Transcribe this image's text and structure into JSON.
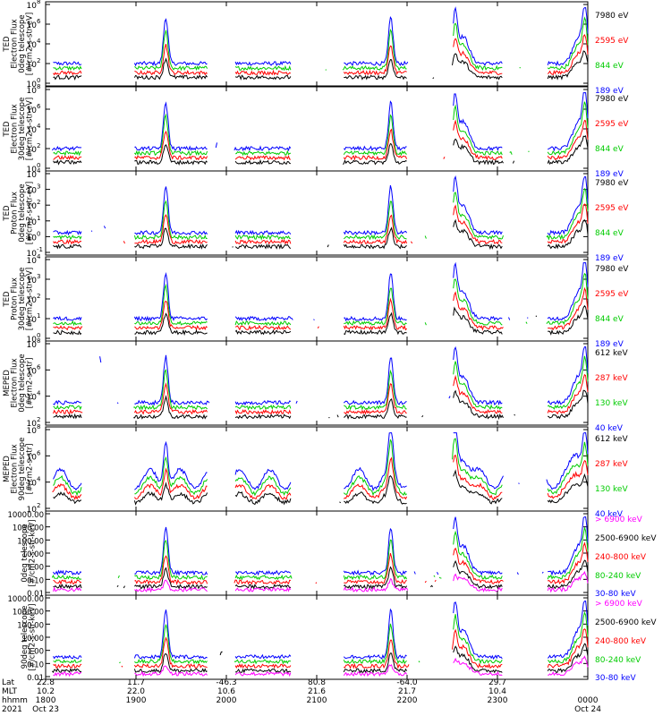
{
  "chart_data": {
    "type": "line",
    "x_start": "1800 UT, Oct 23 2021",
    "x_end": "0000 UT, Oct 24",
    "footer": {
      "row_labels": [
        "Lat",
        "MLT",
        "hhmm",
        "2021"
      ],
      "ticks": [
        {
          "lat": "22.8",
          "mlt": "10.2",
          "hhmm": "1800",
          "date": "Oct 23"
        },
        {
          "lat": "11.7",
          "mlt": "22.0",
          "hhmm": "1900",
          "date": ""
        },
        {
          "lat": "-46.3",
          "mlt": "10.6",
          "hhmm": "2000",
          "date": ""
        },
        {
          "lat": "80.8",
          "mlt": "21.6",
          "hhmm": "2100",
          "date": ""
        },
        {
          "lat": "-64.0",
          "mlt": "21.7",
          "hhmm": "2200",
          "date": ""
        },
        {
          "lat": "29.7",
          "mlt": "10.4",
          "hhmm": "2300",
          "date": ""
        },
        {
          "lat": "",
          "mlt": "",
          "hhmm": "0000",
          "date": "Oct 24"
        }
      ]
    },
    "panels": [
      {
        "ylabel": [
          "TED",
          "Electron Flux",
          "0deg telescope",
          "[#/cm2-s-str-eV]"
        ],
        "log_scale": true,
        "yticks": [
          {
            "base": "10",
            "exp": "0"
          },
          {
            "base": "10",
            "exp": "2"
          },
          {
            "base": "10",
            "exp": "4"
          },
          {
            "base": "10",
            "exp": "6"
          },
          {
            "base": "10",
            "exp": "8"
          }
        ],
        "legend": [
          {
            "text": "7980 eV",
            "color": "#000000"
          },
          {
            "text": "2595 eV",
            "color": "#ff0000"
          },
          {
            "text": "844 eV",
            "color": "#00cc00"
          },
          {
            "text": "189 eV",
            "color": "#0000ff"
          }
        ]
      },
      {
        "ylabel": [
          "TED",
          "Electron Flux",
          "30deg telescope",
          "[#/cm2-s-str-eV]"
        ],
        "log_scale": true,
        "yticks": [
          {
            "base": "10",
            "exp": "0"
          },
          {
            "base": "10",
            "exp": "2"
          },
          {
            "base": "10",
            "exp": "4"
          },
          {
            "base": "10",
            "exp": "6"
          },
          {
            "base": "10",
            "exp": "8"
          }
        ],
        "legend": [
          {
            "text": "7980 eV",
            "color": "#000000"
          },
          {
            "text": "2595 eV",
            "color": "#ff0000"
          },
          {
            "text": "844 eV",
            "color": "#00cc00"
          },
          {
            "text": "189 eV",
            "color": "#0000ff"
          }
        ]
      },
      {
        "ylabel": [
          "TED",
          "Proton Flux",
          "0deg telescope",
          "[#/cm2-s-str-eV]"
        ],
        "log_scale": true,
        "yticks": [
          {
            "base": "10",
            "exp": "-1"
          },
          {
            "base": "10",
            "exp": "0"
          },
          {
            "base": "10",
            "exp": "1"
          },
          {
            "base": "10",
            "exp": "2"
          },
          {
            "base": "10",
            "exp": "3"
          },
          {
            "base": "10",
            "exp": "4"
          }
        ],
        "legend": [
          {
            "text": "7980 eV",
            "color": "#000000"
          },
          {
            "text": "2595 eV",
            "color": "#ff0000"
          },
          {
            "text": "844 eV",
            "color": "#00cc00"
          },
          {
            "text": "189 eV",
            "color": "#0000ff"
          }
        ]
      },
      {
        "ylabel": [
          "TED",
          "Proton Flux",
          "30deg telescope",
          "[#/cm2-s-str-eV]"
        ],
        "log_scale": true,
        "yticks": [
          {
            "base": "10",
            "exp": "0"
          },
          {
            "base": "10",
            "exp": "1"
          },
          {
            "base": "10",
            "exp": "2"
          },
          {
            "base": "10",
            "exp": "3"
          },
          {
            "base": "10",
            "exp": "4"
          }
        ],
        "legend": [
          {
            "text": "7980 eV",
            "color": "#000000"
          },
          {
            "text": "2595 eV",
            "color": "#ff0000"
          },
          {
            "text": "844 eV",
            "color": "#00cc00"
          },
          {
            "text": "189 eV",
            "color": "#0000ff"
          }
        ]
      },
      {
        "ylabel": [
          "MEPED",
          "Electron Flux",
          "0deg telescope",
          "[#/cm2-s-str]"
        ],
        "log_scale": true,
        "yticks": [
          {
            "base": "10",
            "exp": "2"
          },
          {
            "base": "10",
            "exp": "4"
          },
          {
            "base": "10",
            "exp": "6"
          },
          {
            "base": "10",
            "exp": "8"
          }
        ],
        "legend": [
          {
            "text": "612 keV",
            "color": "#000000"
          },
          {
            "text": "287 keV",
            "color": "#ff0000"
          },
          {
            "text": "130 keV",
            "color": "#00cc00"
          },
          {
            "text": "40 keV",
            "color": "#0000ff"
          }
        ]
      },
      {
        "ylabel": [
          "MEPED",
          "Electron Flux",
          "90deg telescope",
          "[#/cm2-s-str]"
        ],
        "log_scale": true,
        "yticks": [
          {
            "base": "10",
            "exp": "2"
          },
          {
            "base": "10",
            "exp": "4"
          },
          {
            "base": "10",
            "exp": "6"
          },
          {
            "base": "10",
            "exp": "8"
          }
        ],
        "legend": [
          {
            "text": "612 keV",
            "color": "#000000"
          },
          {
            "text": "287 keV",
            "color": "#ff0000"
          },
          {
            "text": "130 keV",
            "color": "#00cc00"
          },
          {
            "text": "40 keV",
            "color": "#0000ff"
          }
        ]
      },
      {
        "ylabel": [
          "0deg telescope",
          "[#/cm2-s-str-keV]"
        ],
        "log_scale": true,
        "yticks": [
          {
            "base": "0.01",
            "exp": ""
          },
          {
            "base": "0.10",
            "exp": ""
          },
          {
            "base": "1.00",
            "exp": ""
          },
          {
            "base": "10.00",
            "exp": ""
          },
          {
            "base": "100.00",
            "exp": ""
          },
          {
            "base": "1000.00",
            "exp": ""
          },
          {
            "base": "10000.00",
            "exp": ""
          }
        ],
        "legend": [
          {
            "text": "> 6900 keV",
            "color": "#ff00ff"
          },
          {
            "text": "2500-6900 keV",
            "color": "#000000"
          },
          {
            "text": "240-800 keV",
            "color": "#ff0000"
          },
          {
            "text": "80-240 keV",
            "color": "#00cc00"
          },
          {
            "text": "30-80 keV",
            "color": "#0000ff"
          }
        ]
      },
      {
        "ylabel": [
          "90deg telescope",
          "[#/cm2-s-str-keV]"
        ],
        "log_scale": true,
        "yticks": [
          {
            "base": "0.01",
            "exp": ""
          },
          {
            "base": "0.10",
            "exp": ""
          },
          {
            "base": "1.00",
            "exp": ""
          },
          {
            "base": "10.00",
            "exp": ""
          },
          {
            "base": "100.00",
            "exp": ""
          },
          {
            "base": "1000.00",
            "exp": ""
          },
          {
            "base": "10000.00",
            "exp": ""
          }
        ],
        "legend": [
          {
            "text": "> 6900 keV",
            "color": "#ff00ff"
          },
          {
            "text": "2500-6900 keV",
            "color": "#000000"
          },
          {
            "text": "240-800 keV",
            "color": "#ff0000"
          },
          {
            "text": "80-240 keV",
            "color": "#00cc00"
          },
          {
            "text": "30-80 keV",
            "color": "#0000ff"
          }
        ]
      }
    ]
  }
}
